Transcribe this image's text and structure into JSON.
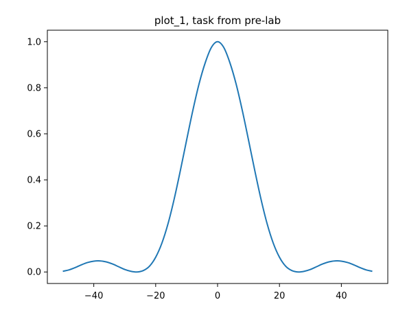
{
  "chart_data": {
    "type": "line",
    "title": "plot_1, task from pre-lab",
    "xlabel": "",
    "ylabel": "",
    "xlim": [
      -55,
      55
    ],
    "ylim": [
      -0.05,
      1.05
    ],
    "x_ticks": [
      -40,
      -20,
      0,
      20,
      40
    ],
    "x_tick_labels": [
      "−40",
      "−20",
      "0",
      "20",
      "40"
    ],
    "y_ticks": [
      0.0,
      0.2,
      0.4,
      0.6,
      0.8,
      1.0
    ],
    "y_tick_labels": [
      "0.0",
      "0.2",
      "0.4",
      "0.6",
      "0.8",
      "1.0"
    ],
    "grid": false,
    "legend": "none",
    "series": [
      {
        "color": "#1f77b4",
        "x": [
          -50,
          -48,
          -46,
          -44,
          -42,
          -40,
          -38,
          -36,
          -34,
          -32,
          -30,
          -28,
          -26,
          -24,
          -22,
          -20,
          -18,
          -16,
          -14,
          -12,
          -10,
          -8,
          -6,
          -4,
          -2,
          0,
          2,
          4,
          6,
          8,
          10,
          12,
          14,
          16,
          18,
          20,
          22,
          24,
          26,
          28,
          30,
          32,
          34,
          36,
          38,
          40,
          42,
          44,
          46,
          48,
          50
        ],
        "y": [
          0.003,
          0.009,
          0.019,
          0.031,
          0.041,
          0.047,
          0.048,
          0.044,
          0.035,
          0.023,
          0.011,
          0.003,
          0.0,
          0.006,
          0.025,
          0.064,
          0.125,
          0.21,
          0.318,
          0.442,
          0.573,
          0.701,
          0.816,
          0.908,
          0.975,
          1.0,
          0.975,
          0.908,
          0.816,
          0.701,
          0.573,
          0.442,
          0.318,
          0.21,
          0.125,
          0.064,
          0.025,
          0.006,
          0.0,
          0.003,
          0.011,
          0.023,
          0.035,
          0.044,
          0.048,
          0.047,
          0.041,
          0.031,
          0.019,
          0.009,
          0.003
        ]
      }
    ]
  }
}
